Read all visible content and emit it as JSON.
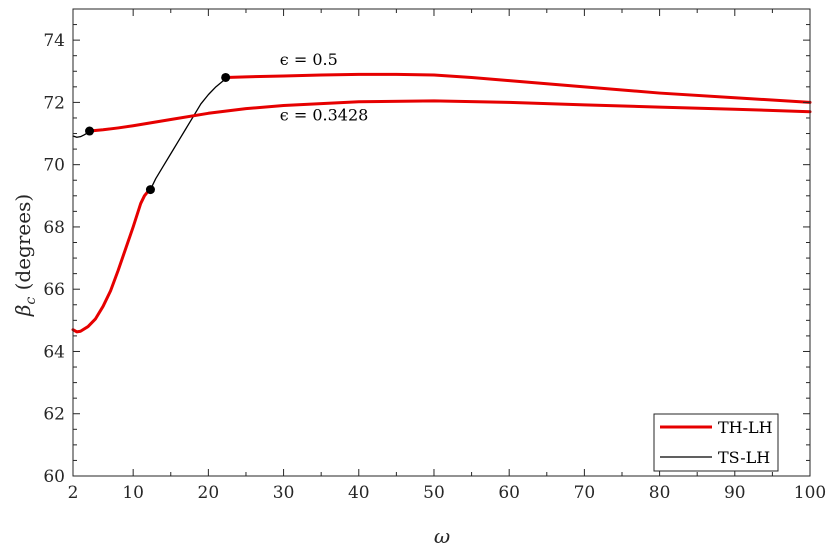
{
  "chart_data": {
    "type": "line",
    "xlabel": "ω",
    "ylabel_symbol": "β",
    "ylabel_subscript": "c",
    "ylabel_unit": " (degrees)",
    "xlim": [
      2,
      100
    ],
    "ylim": [
      60,
      75
    ],
    "xticks": [
      2,
      10,
      20,
      30,
      40,
      50,
      60,
      70,
      80,
      90,
      100
    ],
    "yticks": [
      60,
      62,
      64,
      66,
      68,
      70,
      72,
      74
    ],
    "grid": false,
    "legend_placement": "bottom-right",
    "colors": {
      "TH-LH": "#e60000",
      "TS-LH": "#000000",
      "axes": "#262626"
    },
    "series": [
      {
        "name": "TH-LH",
        "id": "th-lh-eps-0.5-low",
        "x": [
          2,
          2.5,
          3,
          4,
          5,
          6,
          7,
          8,
          9,
          10,
          11,
          11.5,
          12,
          12.3
        ],
        "y": [
          64.7,
          64.63,
          64.65,
          64.8,
          65.05,
          65.45,
          65.95,
          66.6,
          67.3,
          68.0,
          68.75,
          69.0,
          69.15,
          69.2
        ]
      },
      {
        "name": "TS-LH",
        "id": "ts-lh-eps-0.5",
        "x": [
          12.3,
          13,
          14,
          15,
          16,
          17,
          18,
          19,
          20,
          21,
          21.5,
          22,
          22.3
        ],
        "y": [
          69.2,
          69.55,
          69.95,
          70.35,
          70.75,
          71.15,
          71.55,
          71.95,
          72.25,
          72.5,
          72.6,
          72.7,
          72.8
        ]
      },
      {
        "name": "TH-LH",
        "id": "th-lh-eps-0.5-high",
        "x": [
          22.3,
          25,
          30,
          35,
          40,
          45,
          50,
          55,
          60,
          70,
          80,
          90,
          100
        ],
        "y": [
          72.8,
          72.82,
          72.85,
          72.88,
          72.9,
          72.9,
          72.88,
          72.8,
          72.7,
          72.5,
          72.3,
          72.15,
          72.0
        ]
      },
      {
        "name": "TS-LH",
        "id": "ts-lh-eps-0.3428",
        "x": [
          2,
          2.5,
          3,
          3.5,
          4,
          4.2
        ],
        "y": [
          70.92,
          70.88,
          70.9,
          70.96,
          71.03,
          71.08
        ]
      },
      {
        "name": "TH-LH",
        "id": "th-lh-eps-0.3428",
        "x": [
          4.2,
          6,
          8,
          10,
          12,
          15,
          20,
          25,
          30,
          40,
          50,
          60,
          70,
          80,
          90,
          100
        ],
        "y": [
          71.08,
          71.12,
          71.18,
          71.25,
          71.33,
          71.45,
          71.65,
          71.8,
          71.9,
          72.02,
          72.05,
          72.0,
          71.92,
          71.85,
          71.78,
          71.7
        ]
      }
    ],
    "markers": [
      {
        "x": 4.2,
        "y": 71.08
      },
      {
        "x": 12.3,
        "y": 69.2
      },
      {
        "x": 22.3,
        "y": 72.8
      }
    ],
    "annotations": [
      {
        "text": "ϵ = 0.5",
        "x": 29.5,
        "y": 73.2
      },
      {
        "text": "ϵ = 0.3428",
        "x": 29.5,
        "y": 71.42
      }
    ],
    "legend": [
      "TH-LH",
      "TS-LH"
    ]
  }
}
